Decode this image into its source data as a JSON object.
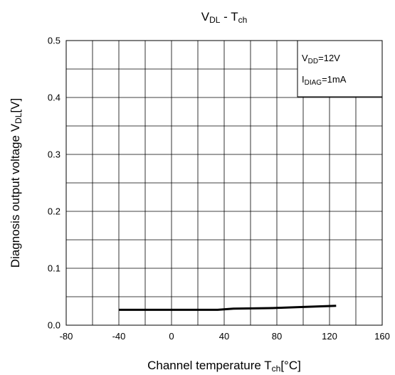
{
  "chart_data": {
    "type": "line",
    "title": {
      "main": "V",
      "sub1": "DL",
      "mid": " - T",
      "sub2": "ch"
    },
    "xlabel": {
      "main": "Channel temperature T",
      "sub": "ch",
      "unit": "[°C]"
    },
    "ylabel": {
      "main": "Diagnosis output voltage V",
      "sub": "DL",
      "unit": "[V]"
    },
    "xlim": [
      -80,
      160
    ],
    "ylim": [
      0.0,
      0.5
    ],
    "xticks": [
      -80,
      -40,
      0,
      40,
      80,
      120,
      160
    ],
    "xtick_labels": [
      "-80",
      "-40",
      "0",
      "40",
      "80",
      "120",
      "160"
    ],
    "yticks": [
      0.0,
      0.1,
      0.2,
      0.3,
      0.4,
      0.5
    ],
    "ytick_labels": [
      "0.0",
      "0.1",
      "0.2",
      "0.3",
      "0.4",
      "0.5"
    ],
    "x_minor_step": 20,
    "y_minor_step": 0.05,
    "grid": true,
    "conditions": [
      {
        "main": "V",
        "sub": "DD",
        "rest": "=12V"
      },
      {
        "main": "I",
        "sub": "DIAG",
        "rest": "=1mA"
      }
    ],
    "conditions_placement": "top-right",
    "series": [
      {
        "color": "#000000",
        "x": [
          -40,
          0,
          35,
          47,
          75,
          100,
          125
        ],
        "y": [
          0.027,
          0.027,
          0.027,
          0.029,
          0.03,
          0.032,
          0.034
        ]
      }
    ]
  }
}
